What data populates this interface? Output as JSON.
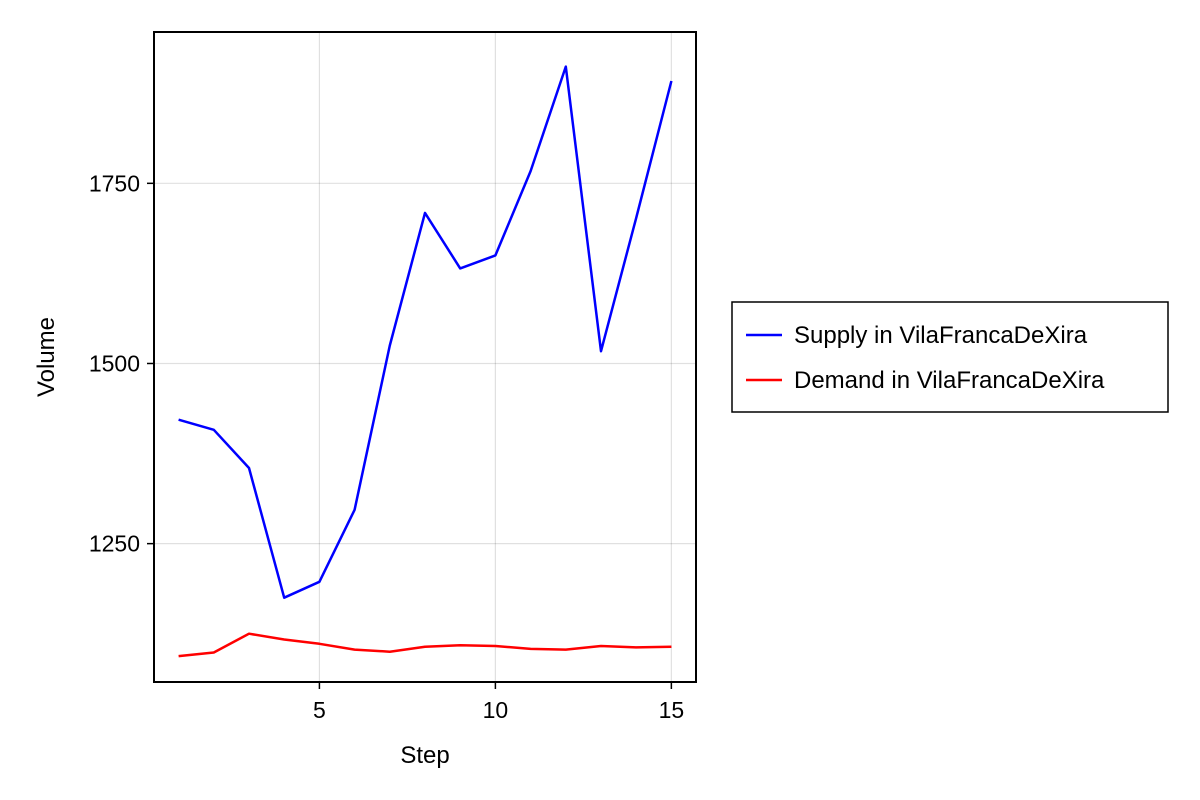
{
  "chart_data": {
    "type": "line",
    "title": "",
    "xlabel": "Step",
    "ylabel": "Volume",
    "xlim": [
      0.3,
      15.7
    ],
    "ylim": [
      1058,
      1960
    ],
    "xticks": [
      5,
      10,
      15
    ],
    "yticks": [
      1250,
      1500,
      1750
    ],
    "grid": true,
    "legend_position": "right",
    "x": [
      1,
      2,
      3,
      4,
      5,
      6,
      7,
      8,
      9,
      10,
      11,
      12,
      13,
      14,
      15
    ],
    "series": [
      {
        "name": "Supply in VilaFrancaDeXira",
        "color": "#0000ff",
        "values": [
          1422,
          1408,
          1355,
          1175,
          1197,
          1297,
          1525,
          1709,
          1632,
          1650,
          1767,
          1912,
          1517,
          1702,
          1892
        ]
      },
      {
        "name": "Demand in VilaFrancaDeXira",
        "color": "#ff0000",
        "values": [
          1094,
          1099,
          1125,
          1117,
          1111,
          1103,
          1100,
          1107,
          1109,
          1108,
          1104,
          1103,
          1108,
          1106,
          1107
        ]
      }
    ]
  }
}
